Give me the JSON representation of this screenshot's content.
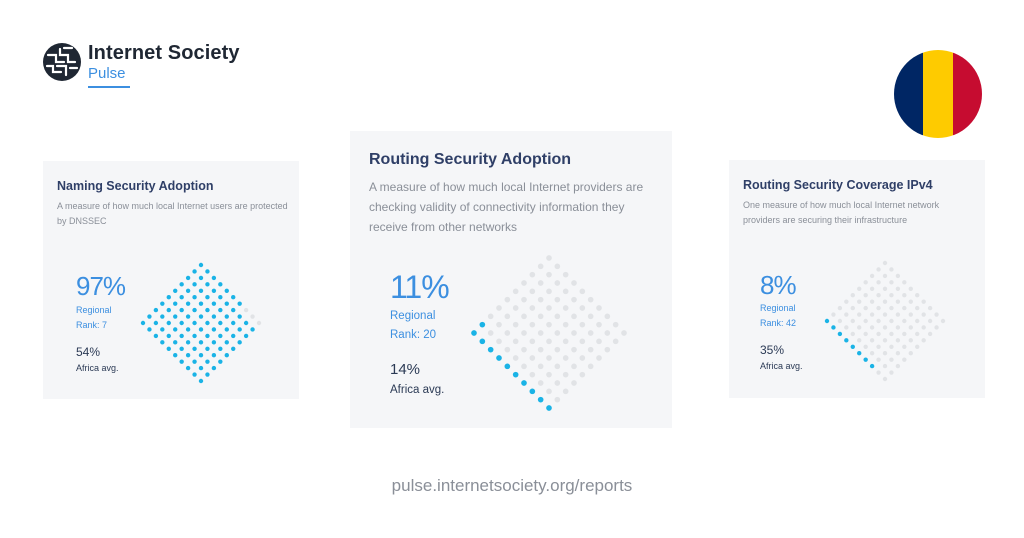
{
  "brand": {
    "name": "Internet Society",
    "sub": "Pulse",
    "logo_icon": "globe-mesh-icon"
  },
  "flag": {
    "colors": [
      "#002664",
      "#FECB00",
      "#C60C30"
    ]
  },
  "colors": {
    "filled": "#1ab3e6",
    "empty": "#e1e3e6",
    "accent": "#3c8fe0"
  },
  "cards": [
    {
      "title": "Naming Security Adoption",
      "description": "A measure of how much local Internet users are protected by DNSSEC",
      "stat": "97%",
      "regional_label": "Regional",
      "rank": "Rank: 7",
      "avg_value": "54%",
      "avg_label": "Africa avg.",
      "fill_fraction": 0.97
    },
    {
      "title": "Routing Security Adoption",
      "description": "A measure of how much local Internet providers are checking validity of connectivity information they receive from other networks",
      "stat": "11%",
      "regional_label": "Regional",
      "rank": "Rank: 20",
      "avg_value": "14%",
      "avg_label": "Africa avg.",
      "fill_fraction": 0.11
    },
    {
      "title": "Routing Security Coverage IPv4",
      "description": "One measure of how much local Internet network providers are securing their infrastructure",
      "stat": "8%",
      "regional_label": "Regional",
      "rank": "Rank: 42",
      "avg_value": "35%",
      "avg_label": "Africa avg.",
      "fill_fraction": 0.08
    }
  ],
  "footer": {
    "url": "pulse.internetsociety.org/reports"
  }
}
